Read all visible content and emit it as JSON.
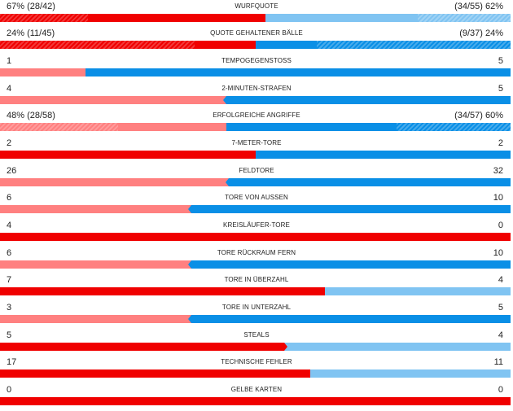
{
  "colors": {
    "home_strong": "#f00000",
    "home_light": "#ff8080",
    "away_strong": "#0a8fe6",
    "away_light": "#80c4f2"
  },
  "stats": [
    {
      "label": "WURFQUOTE",
      "left": "67% (28/42)",
      "right": "(34/55) 62%",
      "home_share": 0.52,
      "home_filled_fraction": 0.67,
      "away_filled_fraction": 0.62,
      "home_color": "strong",
      "away_color": "light",
      "hatched": true
    },
    {
      "label": "QUOTE GEHALTENER BÄLLE",
      "left": "24% (11/45)",
      "right": "(9/37) 24%",
      "home_share": 0.5,
      "home_filled_fraction": 0.24,
      "away_filled_fraction": 0.24,
      "home_color": "strong",
      "away_color": "strong",
      "hatched": true
    },
    {
      "label": "TEMPOGEGENSTOSS",
      "left": "1",
      "right": "5",
      "home_share": 0.167,
      "home_color": "light",
      "away_color": "strong"
    },
    {
      "label": "2-MINUTEN-STRAFEN",
      "left": "4",
      "right": "5",
      "home_share": 0.444,
      "home_color": "light",
      "away_color": "strong",
      "marker": "away"
    },
    {
      "label": "ERFOLGREICHE ANGRIFFE",
      "left": "48% (28/58)",
      "right": "(34/57) 60%",
      "home_share": 0.444,
      "home_filled_fraction": 0.48,
      "away_filled_fraction": 0.6,
      "home_color": "light",
      "away_color": "strong",
      "hatched": true
    },
    {
      "label": "7-METER-TORE",
      "left": "2",
      "right": "2",
      "home_share": 0.5,
      "home_color": "strong",
      "away_color": "strong"
    },
    {
      "label": "FELDTORE",
      "left": "26",
      "right": "32",
      "home_share": 0.448,
      "home_color": "light",
      "away_color": "strong",
      "marker": "away"
    },
    {
      "label": "TORE VON AUSSEN",
      "left": "6",
      "right": "10",
      "home_share": 0.375,
      "home_color": "light",
      "away_color": "strong",
      "marker": "away"
    },
    {
      "label": "KREISLÄUFER-TORE",
      "left": "4",
      "right": "0",
      "home_share": 1,
      "home_color": "strong",
      "away_color": "strong"
    },
    {
      "label": "TORE RÜCKRAUM FERN",
      "left": "6",
      "right": "10",
      "home_share": 0.375,
      "home_color": "light",
      "away_color": "strong",
      "marker": "away"
    },
    {
      "label": "TORE IN ÜBERZAHL",
      "left": "7",
      "right": "4",
      "home_share": 0.636,
      "home_color": "strong",
      "away_color": "light"
    },
    {
      "label": "TORE IN UNTERZAHL",
      "left": "3",
      "right": "5",
      "home_share": 0.375,
      "home_color": "light",
      "away_color": "strong",
      "marker": "away"
    },
    {
      "label": "STEALS",
      "left": "5",
      "right": "4",
      "home_share": 0.556,
      "home_color": "strong",
      "away_color": "light",
      "marker": "home"
    },
    {
      "label": "TECHNISCHE FEHLER",
      "left": "17",
      "right": "11",
      "home_share": 0.607,
      "home_color": "strong",
      "away_color": "light"
    },
    {
      "label": "GELBE KARTEN",
      "left": "0",
      "right": "0",
      "home_share": 1,
      "home_color": "strong",
      "away_color": "strong"
    }
  ]
}
